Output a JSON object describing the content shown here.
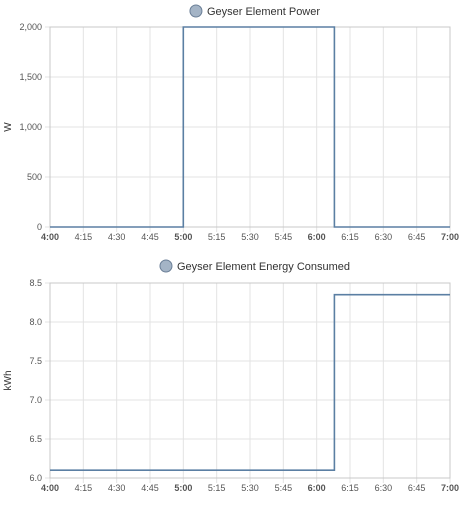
{
  "colors": {
    "series": "#5b7fa3",
    "legend_dot_fill": "#a4b4c6",
    "legend_dot_stroke": "#6b7f97",
    "grid": "#e3e3e3",
    "axis": "#c8c8c8",
    "text": "#333333",
    "tick_text": "#555555",
    "background": "#ffffff"
  },
  "chart_data": [
    {
      "type": "line",
      "step": true,
      "legend": "Geyser Element Power",
      "legend_position": "top-center",
      "ylabel": "W",
      "xlabel": "",
      "x_ticks": [
        "4:00",
        "4:15",
        "4:30",
        "4:45",
        "5:00",
        "5:15",
        "5:30",
        "5:45",
        "6:00",
        "6:15",
        "6:30",
        "6:45",
        "7:00"
      ],
      "x_ticks_bold": [
        "4:00",
        "5:00",
        "6:00",
        "7:00"
      ],
      "x_range": [
        "4:00",
        "7:00"
      ],
      "y_ticks": [
        "0",
        "500",
        "1,000",
        "1,500",
        "2,000"
      ],
      "ylim": [
        0,
        2000
      ],
      "grid": true,
      "series": [
        {
          "name": "Geyser Element Power",
          "points": [
            {
              "x": "4:00",
              "y": 0
            },
            {
              "x": "5:00",
              "y": 0
            },
            {
              "x": "5:00",
              "y": 2000
            },
            {
              "x": "6:08",
              "y": 2000
            },
            {
              "x": "6:08",
              "y": 0
            },
            {
              "x": "7:00",
              "y": 0
            }
          ]
        }
      ]
    },
    {
      "type": "line",
      "step": true,
      "legend": "Geyser Element Energy Consumed",
      "legend_position": "top-center",
      "ylabel": "kWh",
      "xlabel": "",
      "x_ticks": [
        "4:00",
        "4:15",
        "4:30",
        "4:45",
        "5:00",
        "5:15",
        "5:30",
        "5:45",
        "6:00",
        "6:15",
        "6:30",
        "6:45",
        "7:00"
      ],
      "x_ticks_bold": [
        "4:00",
        "5:00",
        "6:00",
        "7:00"
      ],
      "x_range": [
        "4:00",
        "7:00"
      ],
      "y_ticks": [
        "6.0",
        "6.5",
        "7.0",
        "7.5",
        "8.0",
        "8.5"
      ],
      "ylim": [
        6.0,
        8.5
      ],
      "grid": true,
      "series": [
        {
          "name": "Geyser Element Energy Consumed",
          "points": [
            {
              "x": "4:00",
              "y": 6.1
            },
            {
              "x": "6:08",
              "y": 6.1
            },
            {
              "x": "6:08",
              "y": 8.35
            },
            {
              "x": "7:00",
              "y": 8.35
            }
          ]
        }
      ]
    }
  ]
}
